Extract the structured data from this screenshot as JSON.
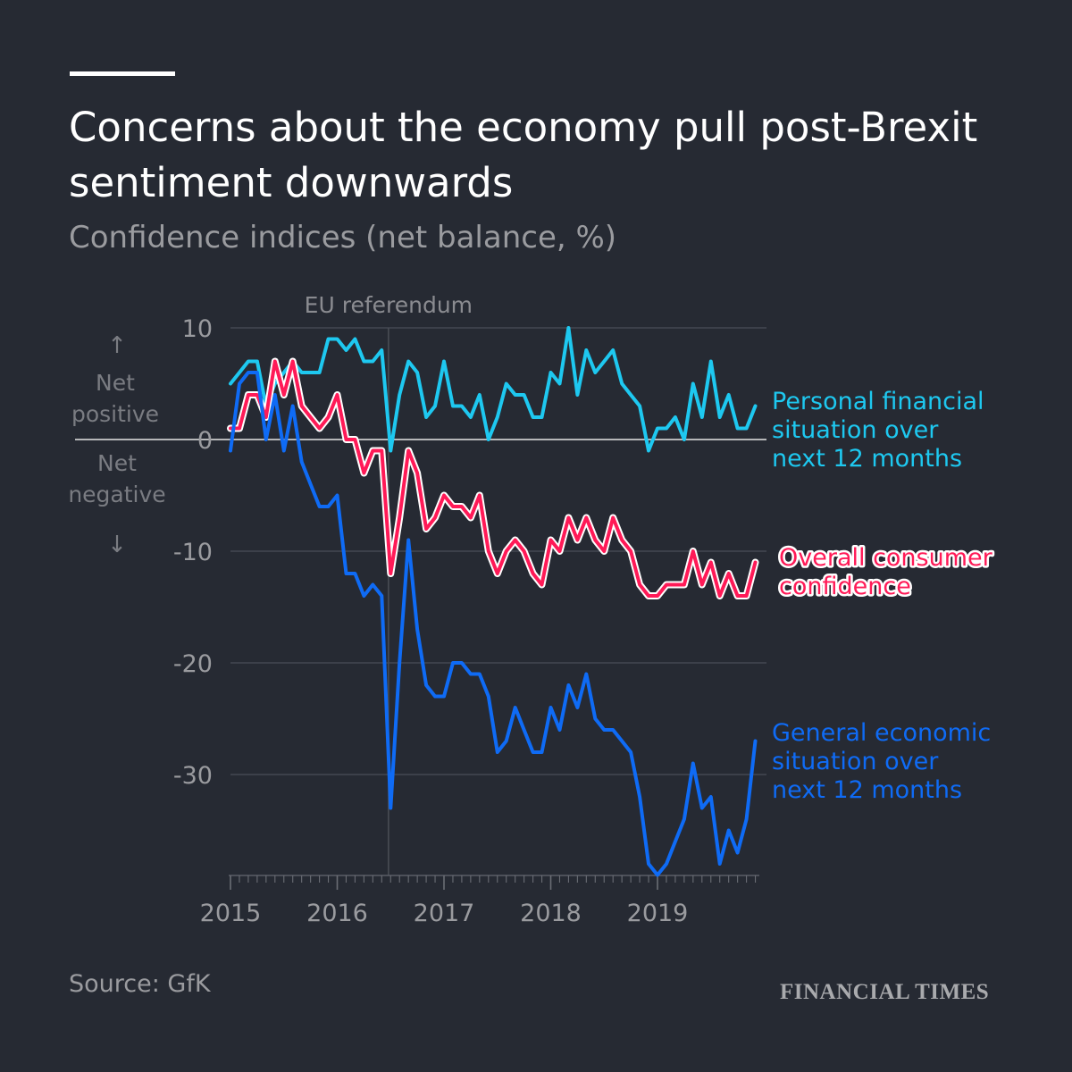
{
  "header": {
    "title": "Concerns about the economy pull post-Brexit sentiment downwards",
    "subtitle": "Confidence indices (net balance, %)"
  },
  "footer": {
    "source": "Source: GfK",
    "brand": "FINANCIAL TIMES"
  },
  "colors": {
    "background": "#262a33",
    "personal": "#1ec8f0",
    "overall": "#ff1a57",
    "general": "#0f6bf5",
    "grid": "#4a4e57",
    "zero_line": "#e6e6e6",
    "muted_text": "#9a9b9f"
  },
  "chart_data": {
    "type": "line",
    "title": "Concerns about the economy pull post-Brexit sentiment downwards",
    "ylabel": "Confidence indices (net balance, %)",
    "xlabel": "",
    "ylim": [
      -39,
      10
    ],
    "yticks": [
      10,
      0,
      -10,
      -20,
      -30
    ],
    "x_start": 2015,
    "x_step_months": 1,
    "xticks": [
      2015,
      2016,
      2017,
      2018,
      2019
    ],
    "zero_labels": {
      "up_arrow": "↑",
      "positive": [
        "Net",
        "positive"
      ],
      "negative": [
        "Net",
        "negative"
      ],
      "down_arrow": "↓"
    },
    "annotations": [
      {
        "label": "EU referendum",
        "x": 2016.48
      }
    ],
    "series": [
      {
        "name": "Personal financial situation over next 12 months",
        "label_lines": [
          "Personal financial",
          "situation over",
          "next 12 months"
        ],
        "color": "#1ec8f0",
        "values": [
          5,
          6,
          7,
          7,
          3,
          5,
          6,
          7,
          6,
          6,
          6,
          9,
          9,
          8,
          9,
          7,
          7,
          8,
          -1,
          4,
          7,
          6,
          2,
          3,
          7,
          3,
          3,
          2,
          4,
          0,
          2,
          5,
          4,
          4,
          2,
          2,
          6,
          5,
          10,
          4,
          8,
          6,
          7,
          8,
          5,
          4,
          3,
          -1,
          1,
          1,
          2,
          0,
          5,
          2,
          7,
          2,
          4,
          1,
          1,
          3
        ]
      },
      {
        "name": "Overall consumer confidence",
        "label_lines": [
          "Overall consumer",
          "confidence"
        ],
        "color": "#ff1a57",
        "values": [
          1,
          1,
          4,
          4,
          2,
          7,
          4,
          7,
          3,
          2,
          1,
          2,
          4,
          0,
          0,
          -3,
          -1,
          -1,
          -12,
          -7,
          -1,
          -3,
          -8,
          -7,
          -5,
          -6,
          -6,
          -7,
          -5,
          -10,
          -12,
          -10,
          -9,
          -10,
          -12,
          -13,
          -9,
          -10,
          -7,
          -9,
          -7,
          -9,
          -10,
          -7,
          -9,
          -10,
          -13,
          -14,
          -14,
          -13,
          -13,
          -13,
          -10,
          -13,
          -11,
          -14,
          -12,
          -14,
          -14,
          -11
        ]
      },
      {
        "name": "General economic situation over next 12 months",
        "label_lines": [
          "General economic",
          "situation over",
          "next 12 months"
        ],
        "color": "#0f6bf5",
        "values": [
          -1,
          5,
          6,
          6,
          0,
          4,
          -1,
          3,
          -2,
          -4,
          -6,
          -6,
          -5,
          -12,
          -12,
          -14,
          -13,
          -14,
          -33,
          -20,
          -9,
          -17,
          -22,
          -23,
          -23,
          -20,
          -20,
          -21,
          -21,
          -23,
          -28,
          -27,
          -24,
          -26,
          -28,
          -28,
          -24,
          -26,
          -22,
          -24,
          -21,
          -25,
          -26,
          -26,
          -27,
          -28,
          -32,
          -38,
          -39,
          -38,
          -36,
          -34,
          -29,
          -33,
          -32,
          -38,
          -35,
          -37,
          -34,
          -27
        ]
      }
    ]
  }
}
